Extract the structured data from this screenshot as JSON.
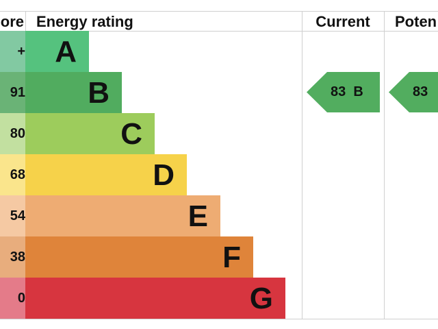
{
  "header": {
    "score": "ore",
    "rating": "Energy rating",
    "current": "Current",
    "potential": "Poten"
  },
  "rows": [
    {
      "score": "+",
      "letter": "A",
      "color": "#55c27e",
      "score_color": "#82c9a2"
    },
    {
      "score": "91",
      "letter": "B",
      "color": "#51ac5f",
      "score_color": "#6ab376"
    },
    {
      "score": "80",
      "letter": "C",
      "color": "#9dcc5c",
      "score_color": "#c2e0a0"
    },
    {
      "score": "68",
      "letter": "D",
      "color": "#f6d24a",
      "score_color": "#fae58c"
    },
    {
      "score": "54",
      "letter": "E",
      "color": "#eeac73",
      "score_color": "#f5c9a3"
    },
    {
      "score": "38",
      "letter": "F",
      "color": "#df843a",
      "score_color": "#e8ad7d"
    },
    {
      "score": "0",
      "letter": "G",
      "color": "#d7353f",
      "score_color": "#e47b89"
    }
  ],
  "current": {
    "score": "83",
    "letter": "B"
  },
  "potential": {
    "score": "83"
  }
}
